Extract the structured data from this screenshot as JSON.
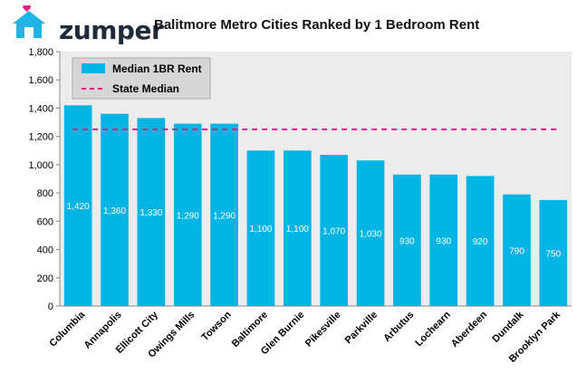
{
  "brand": {
    "name": "zumper",
    "logo_icon": "house-heart-icon",
    "accent": "#1fb4e4",
    "heart_color": "#e8197a"
  },
  "title": "Balitmore Metro Cities Ranked by 1 Bedroom Rent",
  "chart_data": {
    "type": "bar",
    "title": "Balitmore Metro Cities Ranked by 1 Bedroom Rent",
    "categories": [
      "Columbia",
      "Annapolis",
      "Ellicott City",
      "Owings Mills",
      "Towson",
      "Baltimore",
      "Glen Burnie",
      "Pikesville",
      "Parkville",
      "Arbutus",
      "Lochearn",
      "Aberdeen",
      "Dundalk",
      "Brooklyn Park"
    ],
    "series": [
      {
        "name": "Median 1BR Rent",
        "type": "bar",
        "color": "#00b4e4",
        "values": [
          1420,
          1360,
          1330,
          1290,
          1290,
          1100,
          1100,
          1070,
          1030,
          930,
          930,
          920,
          790,
          750
        ],
        "labels": [
          "1,420",
          "1,360",
          "1,330",
          "1,290",
          "1,290",
          "1,100",
          "1,100",
          "1,070",
          "1,030",
          "930",
          "930",
          "920",
          "790",
          "750"
        ]
      },
      {
        "name": "State Median",
        "type": "line",
        "style": "dashed",
        "color": "#e8198b",
        "value": 1250
      }
    ],
    "ylim": [
      0,
      1800
    ],
    "yticks": [
      0,
      200,
      400,
      600,
      800,
      1000,
      1200,
      1400,
      1600,
      1800
    ],
    "ytick_labels": [
      "0",
      "200",
      "400",
      "600",
      "800",
      "1,000",
      "1,200",
      "1,400",
      "1,600",
      "1,800"
    ],
    "legend_position": "top-left",
    "grid": false,
    "background": "#ececec"
  }
}
